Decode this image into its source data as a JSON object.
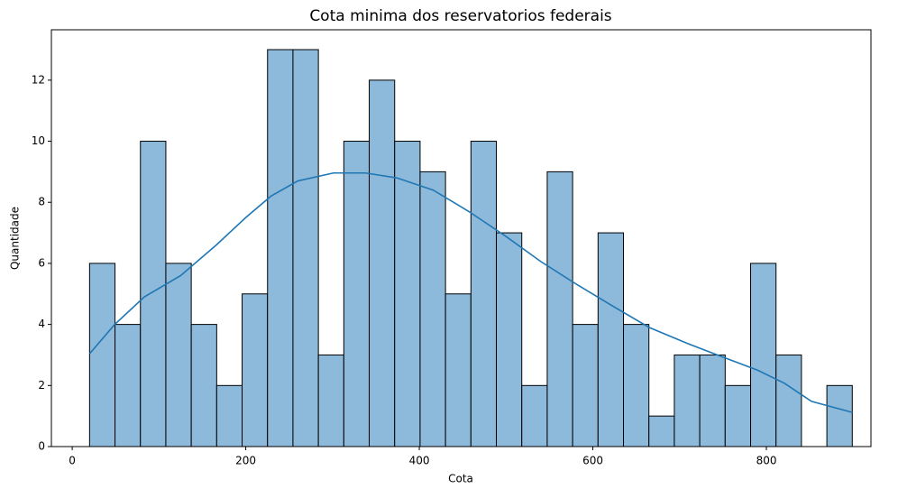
{
  "chart_data": {
    "type": "histogram",
    "title": "Cota minima dos reservatorios federais",
    "x_label": "Cota",
    "y_label": "Quantidade",
    "bins": [
      20,
      49.3,
      78.6,
      107.9,
      137.2,
      166.5,
      195.8,
      225.1,
      254.4,
      283.7,
      313,
      342.3,
      371.6,
      400.9,
      430.2,
      459.5,
      488.8,
      518.1,
      547.4,
      576.7,
      606,
      635.3,
      664.6,
      693.9,
      723.2,
      752.5,
      781.8,
      811.1,
      840.4,
      869.7,
      899
    ],
    "values": [
      6,
      4,
      10,
      6,
      4,
      2,
      5,
      13,
      13,
      3,
      10,
      12,
      10,
      9,
      5,
      10,
      7,
      2,
      9,
      4,
      7,
      4,
      1,
      3,
      3,
      2,
      6,
      3,
      0,
      2
    ],
    "color": "#8db9da",
    "edgecolor": "#000000",
    "kde": {
      "color": "#1f77b4",
      "x": [
        20,
        49,
        83,
        125,
        166,
        200,
        229,
        260,
        301,
        338,
        374,
        416,
        457,
        499,
        540,
        582,
        623,
        665,
        707,
        748,
        790,
        821,
        852,
        899
      ],
      "y": [
        3.04,
        4.0,
        4.9,
        5.6,
        6.6,
        7.5,
        8.2,
        8.7,
        8.96,
        8.96,
        8.8,
        8.4,
        7.7,
        6.9,
        6.06,
        5.3,
        4.6,
        3.9,
        3.4,
        2.95,
        2.5,
        2.07,
        1.48,
        1.12
      ]
    },
    "xlim": [
      -24,
      920.5
    ],
    "ylim": [
      0,
      13.65
    ],
    "xticks": [
      0,
      200,
      400,
      600,
      800
    ],
    "yticks": [
      0,
      2,
      4,
      6,
      8,
      10,
      12
    ]
  }
}
